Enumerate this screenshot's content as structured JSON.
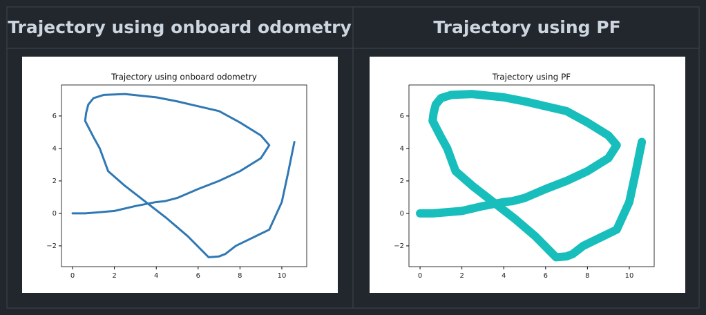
{
  "table": {
    "headers": [
      "Trajectory using onboard odometry",
      "Trajectory using PF"
    ]
  },
  "chart_data": [
    {
      "type": "line",
      "title": "Trajectory using onboard odometry",
      "series": [
        {
          "color": "#2f78b4",
          "x": [
            0,
            0.6,
            2,
            3,
            4,
            4.4,
            5,
            6,
            7,
            8,
            9,
            9.4,
            9,
            8,
            7,
            6,
            5,
            4,
            2.5,
            1.5,
            1,
            0.75,
            0.65,
            0.6,
            1,
            1.3,
            1.7,
            2.5,
            3.5,
            4.5,
            5.5,
            6.5,
            7,
            7.3,
            7.8,
            9.4,
            10,
            10.3,
            10.6
          ],
          "values": [
            0,
            0,
            0.15,
            0.45,
            0.7,
            0.75,
            0.95,
            1.5,
            2.0,
            2.6,
            3.4,
            4.2,
            4.8,
            5.6,
            6.3,
            6.6,
            6.9,
            7.15,
            7.35,
            7.3,
            7.1,
            6.7,
            6.2,
            5.7,
            4.7,
            4.0,
            2.6,
            1.7,
            0.7,
            -0.3,
            -1.4,
            -2.7,
            -2.65,
            -2.5,
            -2.0,
            -1.0,
            0.7,
            2.5,
            4.4
          ]
        }
      ],
      "xlim": [
        -0.53,
        11.19
      ],
      "ylim": [
        -3.28,
        7.91
      ],
      "xticks": [
        0,
        2,
        4,
        6,
        8,
        10
      ],
      "yticks": [
        {
          "value": -2,
          "label": "−2"
        },
        0,
        2,
        4,
        6
      ]
    },
    {
      "type": "line",
      "title": "Trajectory using PF",
      "series": [
        {
          "color": "#17bebb",
          "x": [
            0,
            0.6,
            2,
            3,
            4,
            4.4,
            5,
            6,
            7,
            8,
            9,
            9.4,
            9,
            8,
            7,
            6,
            5,
            4,
            2.5,
            1.5,
            1,
            0.75,
            0.65,
            0.6,
            1,
            1.3,
            1.7,
            2.5,
            3.5,
            4.5,
            5.5,
            6.5,
            7,
            7.3,
            7.8,
            9.4,
            10,
            10.3,
            10.6
          ],
          "values": [
            0,
            0,
            0.15,
            0.45,
            0.7,
            0.75,
            0.95,
            1.5,
            2.0,
            2.6,
            3.4,
            4.2,
            4.8,
            5.6,
            6.3,
            6.6,
            6.9,
            7.15,
            7.35,
            7.3,
            7.1,
            6.7,
            6.2,
            5.7,
            4.7,
            4.0,
            2.6,
            1.7,
            0.7,
            -0.3,
            -1.4,
            -2.7,
            -2.65,
            -2.5,
            -2.0,
            -1.0,
            0.7,
            2.5,
            4.4
          ]
        }
      ],
      "xlim": [
        -0.53,
        11.19
      ],
      "ylim": [
        -3.28,
        7.91
      ],
      "xticks": [
        0,
        2,
        4,
        6,
        8,
        10
      ],
      "yticks": [
        {
          "value": -2,
          "label": "−2"
        },
        0,
        2,
        4,
        6
      ]
    }
  ]
}
